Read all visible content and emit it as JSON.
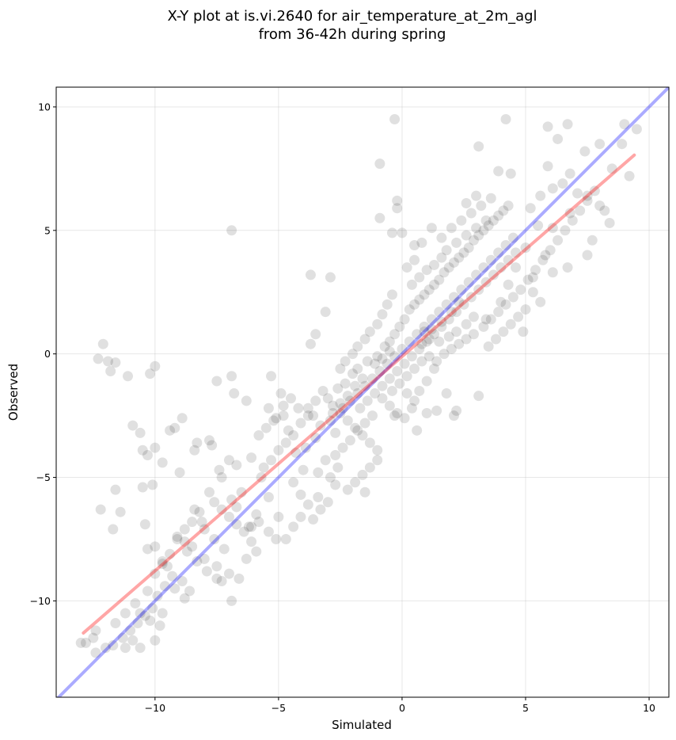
{
  "chart_data": {
    "type": "scatter",
    "title": "X-Y plot at is.vi.2640 for air_temperature_at_2m_agl",
    "subtitle": "from 36-42h during spring",
    "xlabel": "Simulated",
    "ylabel": "Observed",
    "xlim": [
      -14.0,
      10.8
    ],
    "ylim": [
      -13.9,
      10.8
    ],
    "xticks": [
      -10,
      -5,
      0,
      5,
      10
    ],
    "yticks": [
      -10,
      -5,
      0,
      5,
      10
    ],
    "xtick_labels": [
      "−10",
      "−5",
      "0",
      "5",
      "10"
    ],
    "ytick_labels": [
      "−10",
      "−5",
      "0",
      "5",
      "10"
    ],
    "grid": true,
    "point_color": "#000000",
    "point_alpha": 0.12,
    "identity_line": {
      "color": "#0000ff",
      "alpha": 0.33,
      "x": [
        -14.0,
        10.8
      ],
      "y": [
        -14.0,
        10.8
      ]
    },
    "fit_line": {
      "color": "#ff0000",
      "alpha": 0.35,
      "x": [
        -12.9,
        9.4
      ],
      "y": [
        -11.3,
        8.05
      ]
    },
    "points": [
      [
        -12.1,
        0.4
      ],
      [
        -12.3,
        -0.2
      ],
      [
        -11.9,
        -0.3
      ],
      [
        -11.8,
        -0.7
      ],
      [
        -11.6,
        -0.35
      ],
      [
        -11.1,
        -0.9
      ],
      [
        -10.2,
        -0.8
      ],
      [
        -10.0,
        -0.5
      ],
      [
        -6.9,
        5.0
      ],
      [
        -3.7,
        3.2
      ],
      [
        -2.9,
        3.1
      ],
      [
        -3.1,
        1.7
      ],
      [
        -3.5,
        0.8
      ],
      [
        -3.7,
        0.4
      ],
      [
        -0.3,
        9.5
      ],
      [
        -0.9,
        7.7
      ],
      [
        -0.9,
        5.5
      ],
      [
        -0.4,
        4.9
      ],
      [
        0.0,
        4.9
      ],
      [
        -0.2,
        6.2
      ],
      [
        -0.2,
        5.9
      ],
      [
        0.5,
        4.4
      ],
      [
        3.1,
        8.4
      ],
      [
        4.2,
        9.5
      ],
      [
        5.9,
        9.2
      ],
      [
        6.7,
        9.3
      ],
      [
        8.0,
        8.5
      ],
      [
        9.0,
        9.3
      ],
      [
        9.5,
        9.1
      ],
      [
        6.3,
        8.7
      ],
      [
        3.9,
        7.4
      ],
      [
        4.4,
        7.3
      ],
      [
        5.9,
        7.6
      ],
      [
        7.4,
        8.2
      ],
      [
        8.9,
        8.5
      ],
      [
        9.2,
        7.2
      ],
      [
        8.5,
        7.5
      ],
      [
        6.8,
        7.3
      ],
      [
        5.6,
        6.4
      ],
      [
        6.1,
        6.7
      ],
      [
        6.5,
        6.9
      ],
      [
        7.1,
        6.5
      ],
      [
        5.2,
        5.9
      ],
      [
        5.5,
        5.2
      ],
      [
        6.1,
        5.1
      ],
      [
        6.8,
        5.7
      ],
      [
        7.5,
        6.4
      ],
      [
        8.0,
        6.0
      ],
      [
        8.2,
        5.8
      ],
      [
        8.4,
        5.3
      ],
      [
        7.7,
        4.6
      ],
      [
        7.5,
        4.0
      ],
      [
        6.7,
        3.5
      ],
      [
        6.1,
        3.3
      ],
      [
        5.3,
        3.1
      ],
      [
        5.8,
        4.0
      ],
      [
        5.0,
        4.3
      ],
      [
        4.6,
        3.5
      ],
      [
        4.3,
        2.8
      ],
      [
        4.0,
        2.1
      ],
      [
        4.9,
        0.9
      ],
      [
        3.4,
        1.4
      ],
      [
        3.1,
        -1.7
      ],
      [
        2.2,
        -2.3
      ],
      [
        2.1,
        -2.5
      ],
      [
        1.8,
        -1.6
      ],
      [
        1.4,
        -2.3
      ],
      [
        0.6,
        -3.1
      ],
      [
        1.0,
        -2.4
      ],
      [
        -0.3,
        -2.5
      ],
      [
        -10.9,
        -2.9
      ],
      [
        -10.6,
        -3.2
      ],
      [
        -10.0,
        -3.8
      ],
      [
        -10.3,
        -4.1
      ],
      [
        -10.5,
        -3.9
      ],
      [
        -9.7,
        -4.4
      ],
      [
        -9.4,
        -3.1
      ],
      [
        -9.2,
        -3.0
      ],
      [
        -8.9,
        -2.6
      ],
      [
        -9.0,
        -4.8
      ],
      [
        -10.1,
        -5.3
      ],
      [
        -11.6,
        -5.5
      ],
      [
        -12.2,
        -6.3
      ],
      [
        -11.7,
        -7.1
      ],
      [
        -11.4,
        -6.4
      ],
      [
        -10.5,
        -5.4
      ],
      [
        -10.4,
        -6.9
      ],
      [
        -10.3,
        -7.9
      ],
      [
        -10.0,
        -7.8
      ],
      [
        -9.7,
        -8.4
      ],
      [
        -9.5,
        -8.6
      ],
      [
        -9.1,
        -7.5
      ],
      [
        -8.8,
        -7.6
      ],
      [
        -8.5,
        -7.8
      ],
      [
        -8.3,
        -3.6
      ],
      [
        -8.4,
        -3.9
      ],
      [
        -7.8,
        -3.5
      ],
      [
        -7.7,
        -3.7
      ],
      [
        -7.4,
        -4.7
      ],
      [
        -7.3,
        -5.0
      ],
      [
        -7.0,
        -4.3
      ],
      [
        -6.7,
        -4.5
      ],
      [
        -6.9,
        -0.9
      ],
      [
        -7.5,
        -1.1
      ],
      [
        -6.8,
        -1.6
      ],
      [
        -6.3,
        -1.9
      ],
      [
        -5.4,
        -2.2
      ],
      [
        -5.2,
        -2.7
      ],
      [
        -5.3,
        -0.9
      ],
      [
        -4.9,
        -1.6
      ],
      [
        -4.8,
        -2.5
      ],
      [
        -4.6,
        -3.1
      ],
      [
        -4.2,
        -2.2
      ],
      [
        -3.8,
        -2.5
      ],
      [
        -3.5,
        -3.4
      ],
      [
        -3.9,
        -3.8
      ],
      [
        -4.3,
        -4.0
      ],
      [
        -4.0,
        -4.7
      ],
      [
        -6.1,
        -4.2
      ],
      [
        -5.7,
        -5.0
      ],
      [
        -5.4,
        -5.8
      ],
      [
        -5.9,
        -6.5
      ],
      [
        -6.2,
        -7.0
      ],
      [
        -6.7,
        -6.2
      ],
      [
        -6.9,
        -5.9
      ],
      [
        -6.5,
        -5.6
      ],
      [
        -5.0,
        -6.6
      ],
      [
        -5.4,
        -7.2
      ],
      [
        -5.1,
        -7.5
      ],
      [
        -4.7,
        -7.5
      ],
      [
        -4.4,
        -7.0
      ],
      [
        -4.1,
        -6.6
      ],
      [
        -3.6,
        -6.7
      ],
      [
        -3.3,
        -6.3
      ],
      [
        -6.1,
        -7.6
      ],
      [
        -5.9,
        -8.0
      ],
      [
        -6.3,
        -8.3
      ],
      [
        -7.2,
        -7.9
      ],
      [
        -7.6,
        -7.5
      ],
      [
        -8.0,
        -7.1
      ],
      [
        -8.1,
        -6.8
      ],
      [
        -8.4,
        -6.3
      ],
      [
        -8.0,
        -8.3
      ],
      [
        -7.5,
        -8.6
      ],
      [
        -7.0,
        -8.9
      ],
      [
        -6.6,
        -9.1
      ],
      [
        -6.9,
        -10.0
      ],
      [
        -7.3,
        -9.2
      ],
      [
        -8.6,
        -9.6
      ],
      [
        -8.9,
        -9.2
      ],
      [
        -9.3,
        -9.0
      ],
      [
        -9.6,
        -9.4
      ],
      [
        -9.9,
        -9.8
      ],
      [
        -10.1,
        -10.3
      ],
      [
        -10.4,
        -10.6
      ],
      [
        -10.7,
        -10.9
      ],
      [
        -11.0,
        -11.2
      ],
      [
        -11.3,
        -11.5
      ],
      [
        -11.7,
        -11.8
      ],
      [
        -12.0,
        -11.9
      ],
      [
        -12.4,
        -12.1
      ],
      [
        -12.8,
        -11.7
      ],
      [
        -13.0,
        -11.7
      ],
      [
        -12.5,
        -11.5
      ],
      [
        -12.4,
        -11.2
      ],
      [
        -11.6,
        -10.9
      ],
      [
        -10.6,
        -10.5
      ],
      [
        -10.2,
        -10.8
      ],
      [
        -9.8,
        -11.0
      ],
      [
        -10.0,
        -11.6
      ],
      [
        -10.6,
        -11.9
      ],
      [
        -11.2,
        -11.9
      ],
      [
        -10.9,
        -11.6
      ],
      [
        -9.7,
        -10.5
      ],
      [
        -2.6,
        -1.4
      ],
      [
        -2.3,
        -1.2
      ],
      [
        -2.0,
        -0.8
      ],
      [
        -1.8,
        -0.6
      ],
      [
        -1.4,
        -0.3
      ],
      [
        -1.0,
        -0.1
      ],
      [
        -0.7,
        0.3
      ],
      [
        -0.5,
        0.5
      ],
      [
        -0.3,
        0.8
      ],
      [
        -0.1,
        1.1
      ],
      [
        0.1,
        1.4
      ],
      [
        0.3,
        1.8
      ],
      [
        0.5,
        2.0
      ],
      [
        0.7,
        2.2
      ],
      [
        0.9,
        2.4
      ],
      [
        1.1,
        2.6
      ],
      [
        1.3,
        2.8
      ],
      [
        1.5,
        3.0
      ],
      [
        1.7,
        3.3
      ],
      [
        1.9,
        3.5
      ],
      [
        2.1,
        3.7
      ],
      [
        2.3,
        3.9
      ],
      [
        2.5,
        4.1
      ],
      [
        2.7,
        4.3
      ],
      [
        2.9,
        4.6
      ],
      [
        3.1,
        4.8
      ],
      [
        3.3,
        5.0
      ],
      [
        3.5,
        5.2
      ],
      [
        3.7,
        5.4
      ],
      [
        3.9,
        5.6
      ],
      [
        4.1,
        5.8
      ],
      [
        4.3,
        6.0
      ],
      [
        -3.0,
        -1.8
      ],
      [
        -2.8,
        -2.1
      ],
      [
        -2.5,
        -2.4
      ],
      [
        -2.2,
        -2.7
      ],
      [
        -1.9,
        -3.0
      ],
      [
        -1.6,
        -3.3
      ],
      [
        -1.3,
        -3.6
      ],
      [
        -1.0,
        -3.9
      ],
      [
        -2.4,
        -2.2
      ],
      [
        -2.1,
        -1.9
      ],
      [
        -1.8,
        -1.6
      ],
      [
        -1.5,
        -1.3
      ],
      [
        -1.2,
        -1.0
      ],
      [
        -0.9,
        -0.7
      ],
      [
        -0.6,
        -0.4
      ],
      [
        -0.3,
        -0.1
      ],
      [
        0.0,
        0.2
      ],
      [
        0.3,
        0.5
      ],
      [
        0.6,
        0.8
      ],
      [
        0.9,
        1.1
      ],
      [
        1.2,
        1.4
      ],
      [
        1.5,
        1.7
      ],
      [
        1.8,
        2.0
      ],
      [
        2.1,
        2.3
      ],
      [
        2.4,
        2.6
      ],
      [
        2.7,
        2.9
      ],
      [
        3.0,
        3.2
      ],
      [
        3.3,
        3.5
      ],
      [
        3.6,
        3.8
      ],
      [
        3.9,
        4.1
      ],
      [
        4.2,
        4.4
      ],
      [
        4.5,
        4.7
      ],
      [
        -1.7,
        -2.2
      ],
      [
        -1.4,
        -1.9
      ],
      [
        -1.1,
        -1.6
      ],
      [
        -0.8,
        -1.3
      ],
      [
        -0.5,
        -1.0
      ],
      [
        -0.2,
        -0.7
      ],
      [
        0.1,
        -0.4
      ],
      [
        0.4,
        -0.1
      ],
      [
        0.7,
        0.2
      ],
      [
        1.0,
        0.5
      ],
      [
        1.3,
        0.8
      ],
      [
        1.6,
        1.1
      ],
      [
        1.9,
        1.4
      ],
      [
        2.2,
        1.7
      ],
      [
        2.5,
        2.0
      ],
      [
        2.8,
        2.3
      ],
      [
        3.1,
        2.6
      ],
      [
        3.4,
        2.9
      ],
      [
        3.7,
        3.2
      ],
      [
        4.0,
        3.5
      ],
      [
        4.3,
        3.8
      ],
      [
        4.6,
        4.1
      ],
      [
        0.9,
        0.9
      ],
      [
        1.2,
        1.0
      ],
      [
        1.6,
        1.3
      ],
      [
        2.0,
        1.7
      ],
      [
        2.3,
        2.1
      ],
      [
        1.1,
        0.6
      ],
      [
        0.8,
        0.4
      ],
      [
        1.5,
        0.5
      ],
      [
        1.9,
        0.7
      ],
      [
        2.2,
        0.9
      ],
      [
        2.6,
        1.2
      ],
      [
        2.9,
        1.5
      ],
      [
        1.4,
        -0.3
      ],
      [
        1.7,
        0.0
      ],
      [
        2.0,
        0.2
      ],
      [
        2.3,
        0.4
      ],
      [
        2.6,
        0.6
      ],
      [
        2.9,
        0.8
      ],
      [
        0.2,
        -0.9
      ],
      [
        0.5,
        -0.6
      ],
      [
        0.8,
        -0.3
      ],
      [
        1.1,
        -0.1
      ],
      [
        -0.4,
        -1.5
      ],
      [
        -0.1,
        -1.2
      ],
      [
        0.2,
        -1.6
      ],
      [
        0.5,
        -1.9
      ],
      [
        -0.8,
        -1.8
      ],
      [
        -0.5,
        -2.1
      ],
      [
        -0.2,
        -2.4
      ],
      [
        0.1,
        -2.6
      ],
      [
        0.4,
        -2.2
      ],
      [
        0.7,
        -1.5
      ],
      [
        1.0,
        -1.1
      ],
      [
        1.3,
        -0.6
      ],
      [
        -1.2,
        -2.5
      ],
      [
        -1.5,
        -2.8
      ],
      [
        -1.8,
        -3.1
      ],
      [
        -2.1,
        -3.5
      ],
      [
        -2.4,
        -3.8
      ],
      [
        -2.7,
        -4.1
      ],
      [
        -1.0,
        -4.3
      ],
      [
        -1.3,
        -4.6
      ],
      [
        -1.6,
        -4.9
      ],
      [
        -1.9,
        -5.2
      ],
      [
        -2.2,
        -5.5
      ],
      [
        -1.5,
        -5.6
      ],
      [
        -3.4,
        -4.8
      ],
      [
        -2.9,
        -5.0
      ],
      [
        -2.6,
        -4.6
      ],
      [
        -3.1,
        -4.3
      ],
      [
        -3.3,
        -2.9
      ],
      [
        -2.9,
        -2.7
      ],
      [
        -2.7,
        -3.2
      ],
      [
        -3.6,
        -2.5
      ],
      [
        -4.1,
        -2.8
      ],
      [
        -4.4,
        -3.3
      ],
      [
        -4.7,
        -3.6
      ],
      [
        -5.0,
        -3.9
      ],
      [
        -5.3,
        -4.3
      ],
      [
        -5.6,
        -4.6
      ],
      [
        -4.4,
        -5.2
      ],
      [
        -4.1,
        -5.7
      ],
      [
        -3.8,
        -6.1
      ],
      [
        -3.4,
        -5.8
      ],
      [
        -3.0,
        -6.0
      ],
      [
        -2.7,
        -5.3
      ],
      [
        -7.8,
        -5.6
      ],
      [
        -7.6,
        -6.0
      ],
      [
        -7.3,
        -6.3
      ],
      [
        -7.0,
        -6.6
      ],
      [
        -6.7,
        -6.9
      ],
      [
        -6.4,
        -7.2
      ],
      [
        -6.1,
        -7.0
      ],
      [
        -5.8,
        -6.8
      ],
      [
        -8.2,
        -6.4
      ],
      [
        -8.5,
        -6.8
      ],
      [
        -8.8,
        -7.1
      ],
      [
        -9.1,
        -7.4
      ],
      [
        -8.7,
        -8.0
      ],
      [
        -8.3,
        -8.4
      ],
      [
        -7.9,
        -8.8
      ],
      [
        -7.5,
        -9.1
      ],
      [
        -9.4,
        -8.1
      ],
      [
        -9.7,
        -8.5
      ],
      [
        -10.0,
        -8.9
      ],
      [
        -9.2,
        -9.5
      ],
      [
        -8.8,
        -9.9
      ],
      [
        -10.3,
        -9.6
      ],
      [
        -10.8,
        -10.1
      ],
      [
        -11.2,
        -10.5
      ],
      [
        0.4,
        2.8
      ],
      [
        0.7,
        3.1
      ],
      [
        1.0,
        3.4
      ],
      [
        1.3,
        3.6
      ],
      [
        1.6,
        3.9
      ],
      [
        0.2,
        3.5
      ],
      [
        0.5,
        3.8
      ],
      [
        1.8,
        4.2
      ],
      [
        2.2,
        4.5
      ],
      [
        2.6,
        4.8
      ],
      [
        3.0,
        5.1
      ],
      [
        3.4,
        5.4
      ],
      [
        2.0,
        5.1
      ],
      [
        2.4,
        5.4
      ],
      [
        2.8,
        5.7
      ],
      [
        3.2,
        6.0
      ],
      [
        3.6,
        6.3
      ],
      [
        2.6,
        6.1
      ],
      [
        3.0,
        6.4
      ],
      [
        1.6,
        4.7
      ],
      [
        1.2,
        5.1
      ],
      [
        0.8,
        4.5
      ],
      [
        -0.4,
        2.4
      ],
      [
        -0.6,
        2.0
      ],
      [
        -0.8,
        1.6
      ],
      [
        -1.0,
        1.2
      ],
      [
        -1.3,
        0.9
      ],
      [
        -1.5,
        0.6
      ],
      [
        -1.8,
        0.3
      ],
      [
        -2.0,
        0.0
      ],
      [
        -2.3,
        -0.3
      ],
      [
        -2.5,
        -0.6
      ],
      [
        3.3,
        1.1
      ],
      [
        3.6,
        1.4
      ],
      [
        3.9,
        1.7
      ],
      [
        4.2,
        2.0
      ],
      [
        4.5,
        2.3
      ],
      [
        3.5,
        0.3
      ],
      [
        3.8,
        0.6
      ],
      [
        4.1,
        0.9
      ],
      [
        4.4,
        1.2
      ],
      [
        4.7,
        1.5
      ],
      [
        5.0,
        1.8
      ],
      [
        4.8,
        2.6
      ],
      [
        5.1,
        3.0
      ],
      [
        5.4,
        3.4
      ],
      [
        5.7,
        3.8
      ],
      [
        6.0,
        4.2
      ],
      [
        6.3,
        4.6
      ],
      [
        6.6,
        5.0
      ],
      [
        6.9,
        5.4
      ],
      [
        7.2,
        5.8
      ],
      [
        7.5,
        6.2
      ],
      [
        7.8,
        6.6
      ],
      [
        5.6,
        2.1
      ],
      [
        5.3,
        2.5
      ],
      [
        -1.1,
        -0.4
      ],
      [
        -0.8,
        -0.2
      ],
      [
        -0.5,
        0.1
      ],
      [
        -1.6,
        -1.0
      ],
      [
        -1.9,
        -1.3
      ],
      [
        -2.2,
        -1.7
      ],
      [
        -2.5,
        -2.0
      ],
      [
        -2.8,
        -2.4
      ],
      [
        -3.2,
        -1.5
      ],
      [
        -3.5,
        -1.9
      ],
      [
        -3.8,
        -2.2
      ],
      [
        -4.5,
        -1.8
      ],
      [
        -4.8,
        -2.1
      ],
      [
        -5.1,
        -2.6
      ],
      [
        -5.5,
        -3.0
      ],
      [
        -5.8,
        -3.3
      ]
    ]
  }
}
